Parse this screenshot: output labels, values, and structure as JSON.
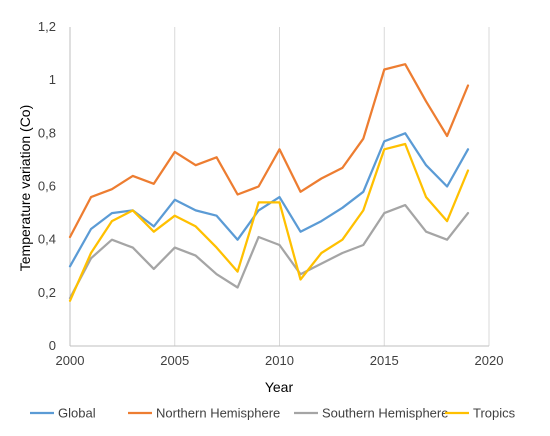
{
  "chart_data": {
    "type": "line",
    "title": "",
    "xlabel": "Year",
    "ylabel": "Temperature variation (Co)",
    "xlim": [
      2000,
      2020
    ],
    "ylim": [
      0,
      1.2
    ],
    "x_ticks": [
      2000,
      2005,
      2010,
      2015,
      2020
    ],
    "x_tick_labels": [
      "2000",
      "2005",
      "2010",
      "2015",
      "2020"
    ],
    "y_ticks": [
      0,
      0.2,
      0.4,
      0.6,
      0.8,
      1,
      1.2
    ],
    "y_tick_labels": [
      "0",
      "0,2",
      "0,4",
      "0,6",
      "0,8",
      "1",
      "1,2"
    ],
    "grid": "vertical",
    "legend_position": "bottom",
    "x": [
      2000,
      2001,
      2002,
      2003,
      2004,
      2005,
      2006,
      2007,
      2008,
      2009,
      2010,
      2011,
      2012,
      2013,
      2014,
      2015,
      2016,
      2017,
      2018,
      2019
    ],
    "series": [
      {
        "name": "Global",
        "color": "#5B9BD5",
        "values": [
          0.3,
          0.44,
          0.5,
          0.51,
          0.45,
          0.55,
          0.51,
          0.49,
          0.4,
          0.51,
          0.56,
          0.43,
          0.47,
          0.52,
          0.58,
          0.77,
          0.8,
          0.68,
          0.6,
          0.74
        ]
      },
      {
        "name": "Northern Hemisphere",
        "color": "#ED7D31",
        "values": [
          0.41,
          0.56,
          0.59,
          0.64,
          0.61,
          0.73,
          0.68,
          0.71,
          0.57,
          0.6,
          0.74,
          0.58,
          0.63,
          0.67,
          0.78,
          1.04,
          1.06,
          0.92,
          0.79,
          0.98
        ]
      },
      {
        "name": "Southern Hemisphere",
        "color": "#A5A5A5",
        "values": [
          0.18,
          0.33,
          0.4,
          0.37,
          0.29,
          0.37,
          0.34,
          0.27,
          0.22,
          0.41,
          0.38,
          0.27,
          0.31,
          0.35,
          0.38,
          0.5,
          0.53,
          0.43,
          0.4,
          0.5
        ]
      },
      {
        "name": "Tropics",
        "color": "#FFC000",
        "values": [
          0.17,
          0.35,
          0.47,
          0.51,
          0.43,
          0.49,
          0.45,
          0.37,
          0.28,
          0.54,
          0.54,
          0.25,
          0.35,
          0.4,
          0.51,
          0.74,
          0.76,
          0.56,
          0.47,
          0.66
        ]
      }
    ]
  }
}
